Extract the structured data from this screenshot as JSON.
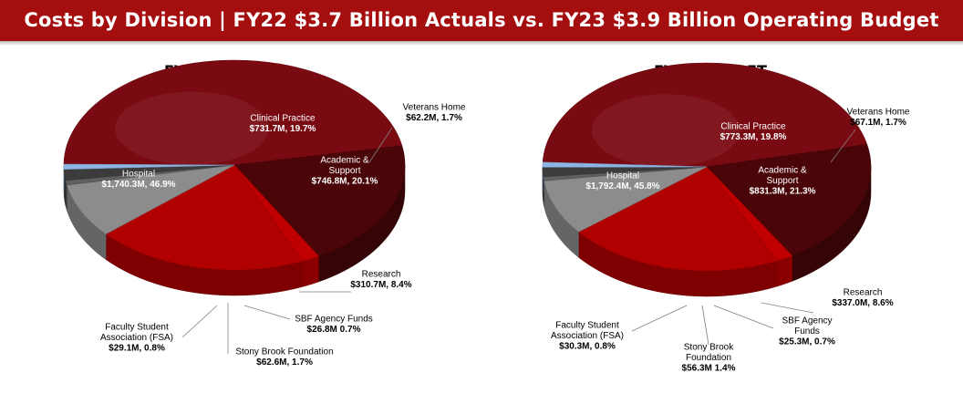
{
  "header": {
    "title": "Costs by Division | FY22 $3.7 Billion Actuals vs. FY23 $3.9 Billion Operating Budget"
  },
  "colors": {
    "banner": "#a50e0e",
    "hospital": "#7a0a12",
    "clinical": "#4a0508",
    "veterans": "#c00000",
    "academic": "#b00000",
    "research": "#8c8c8c",
    "sbf": "#5f5f5f",
    "foundation": "#3c3c3c",
    "fsa": "#8eb4e3"
  },
  "chart_data": [
    {
      "type": "pie",
      "title": "FY22 ACTUALS",
      "slices": [
        {
          "name": "Hospital",
          "value_text": "$1,740.3M, 46.9%",
          "value": 1740.3,
          "percent": 46.9
        },
        {
          "name": "Clinical Practice",
          "value_text": "$731.7M, 19.7%",
          "value": 731.7,
          "percent": 19.7
        },
        {
          "name": "Veterans Home",
          "value_text": "$62.2M, 1.7%",
          "value": 62.2,
          "percent": 1.7
        },
        {
          "name": "Academic & Support",
          "name_lines": [
            "Academic &",
            "Support"
          ],
          "value_text": "$746.8M, 20.1%",
          "value": 746.8,
          "percent": 20.1
        },
        {
          "name": "Research",
          "value_text": "$310.7M, 8.4%",
          "value": 310.7,
          "percent": 8.4
        },
        {
          "name": "SBF Agency Funds",
          "value_text": "$26.8M 0.7%",
          "value": 26.8,
          "percent": 0.7
        },
        {
          "name": "Stony Brook Foundation",
          "value_text": "$62.6M, 1.7%",
          "value": 62.6,
          "percent": 1.7
        },
        {
          "name": "Faculty Student Association (FSA)",
          "name_lines": [
            "Faculty Student",
            "Association (FSA)"
          ],
          "value_text": "$29.1M, 0.8%",
          "value": 29.1,
          "percent": 0.8
        }
      ]
    },
    {
      "type": "pie",
      "title": "FY23 BUDGET",
      "slices": [
        {
          "name": "Hospital",
          "value_text": "$1,792.4M, 45.8%",
          "value": 1792.4,
          "percent": 45.8
        },
        {
          "name": "Clinical Practice",
          "value_text": "$773.3M, 19.8%",
          "value": 773.3,
          "percent": 19.8
        },
        {
          "name": "Veterans Home",
          "value_text": "$67.1M, 1.7%",
          "value": 67.1,
          "percent": 1.7
        },
        {
          "name": "Academic & Support",
          "name_lines": [
            "Academic &",
            "Support"
          ],
          "value_text": "$831.3M, 21.3%",
          "value": 831.3,
          "percent": 21.3
        },
        {
          "name": "Research",
          "value_text": "$337.0M, 8.6%",
          "value": 337.0,
          "percent": 8.6
        },
        {
          "name": "SBF Agency Funds",
          "name_lines": [
            "SBF Agency",
            "Funds"
          ],
          "value_text": "$25.3M, 0.7%",
          "value": 25.3,
          "percent": 0.7
        },
        {
          "name": "Stony Brook Foundation",
          "name_lines": [
            "Stony Brook",
            "Foundation"
          ],
          "value_text": "$56.3M 1.4%",
          "value": 56.3,
          "percent": 1.4
        },
        {
          "name": "Faculty Student Association (FSA)",
          "name_lines": [
            "Faculty Student",
            "Association (FSA)"
          ],
          "value_text": "$30.3M, 0.8%",
          "value": 30.3,
          "percent": 0.8
        }
      ]
    }
  ]
}
